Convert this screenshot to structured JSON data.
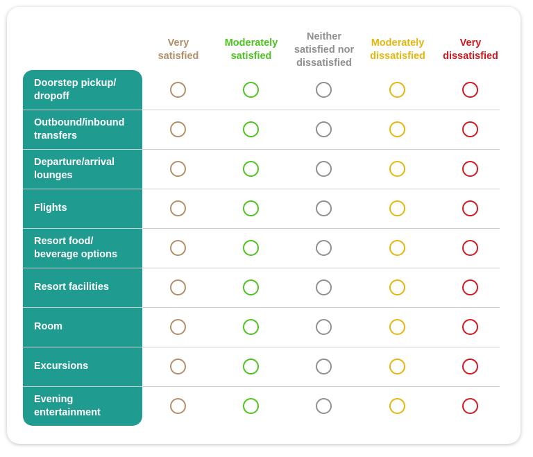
{
  "columns": [
    {
      "lines": [
        "Very",
        "satisfied"
      ],
      "color": "#b38f68"
    },
    {
      "lines": [
        "Moderately",
        "satisfied"
      ],
      "color": "#4ec31f"
    },
    {
      "lines": [
        "Neither",
        "satisfied nor",
        "dissatisfied"
      ],
      "color": "#8f8f8f"
    },
    {
      "lines": [
        "Moderately",
        "dissatisfied"
      ],
      "color": "#e6b60f"
    },
    {
      "lines": [
        "Very",
        "dissatisfied"
      ],
      "color": "#cf1820"
    }
  ],
  "rows": [
    {
      "lines": [
        "Doorstep pickup/",
        "dropoff"
      ]
    },
    {
      "lines": [
        "Outbound/inbound",
        "transfers"
      ]
    },
    {
      "lines": [
        "Departure/arrival",
        "lounges"
      ]
    },
    {
      "lines": [
        "Flights"
      ]
    },
    {
      "lines": [
        "Resort food/",
        "beverage options"
      ]
    },
    {
      "lines": [
        "Resort facilities"
      ]
    },
    {
      "lines": [
        "Room"
      ]
    },
    {
      "lines": [
        "Excursions"
      ]
    },
    {
      "lines": [
        "Evening",
        "entertainment"
      ]
    }
  ]
}
